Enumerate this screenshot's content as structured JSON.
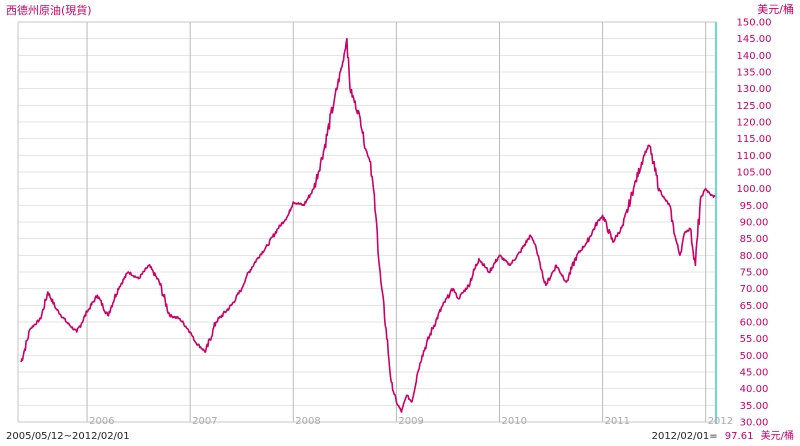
{
  "chart_data": {
    "type": "line",
    "title": "西德州原油(現貨)",
    "unit": "美元/桶",
    "date_range": "2005/05/12~2012/02/01",
    "latest": {
      "label": "2012/02/01=",
      "value": "97.61",
      "unit": "美元/桶"
    },
    "x_ticks": [
      "2006",
      "2007",
      "2008",
      "2009",
      "2010",
      "2011",
      "2012"
    ],
    "ylim": [
      30,
      150
    ],
    "y_ticks": [
      "30.00",
      "35.00",
      "40.00",
      "45.00",
      "50.00",
      "55.00",
      "60.00",
      "65.00",
      "70.00",
      "75.00",
      "80.00",
      "85.00",
      "90.00",
      "95.00",
      "100.00",
      "105.00",
      "110.00",
      "115.00",
      "120.00",
      "125.00",
      "130.00",
      "135.00",
      "140.00",
      "145.00",
      "150.00"
    ],
    "grid": true,
    "colors": {
      "line": "#cc0066",
      "title": "#cc0066",
      "axis_text": "#cc0066",
      "right_axis": "#66d9e8",
      "grid": "#bbbbbb",
      "x_tick": "#aaaaaa"
    },
    "series": [
      {
        "x": [
          2005.36,
          2005.45,
          2005.55,
          2005.62,
          2005.7,
          2005.8,
          2005.9,
          2006.0,
          2006.1,
          2006.2,
          2006.3,
          2006.4,
          2006.5,
          2006.6,
          2006.7,
          2006.8,
          2006.9,
          2007.0,
          2007.05,
          2007.15,
          2007.25,
          2007.4,
          2007.5,
          2007.55,
          2007.65,
          2007.75,
          2007.85,
          2007.95,
          2008.0,
          2008.1,
          2008.2,
          2008.3,
          2008.4,
          2008.48,
          2008.52,
          2008.55,
          2008.65,
          2008.7,
          2008.75,
          2008.8,
          2008.85,
          2008.9,
          2008.95,
          2009.0,
          2009.05,
          2009.1,
          2009.15,
          2009.2,
          2009.25,
          2009.35,
          2009.45,
          2009.55,
          2009.6,
          2009.7,
          2009.8,
          2009.9,
          2010.0,
          2010.1,
          2010.2,
          2010.3,
          2010.35,
          2010.4,
          2010.45,
          2010.55,
          2010.65,
          2010.75,
          2010.85,
          2010.95,
          2011.0,
          2011.1,
          2011.2,
          2011.3,
          2011.4,
          2011.45,
          2011.55,
          2011.6,
          2011.65,
          2011.7,
          2011.75,
          2011.8,
          2011.85,
          2011.9,
          2011.95,
          2012.0,
          2012.05,
          2012.09
        ],
        "values": [
          48,
          58,
          61,
          69,
          64,
          60,
          57,
          63,
          68,
          62,
          70,
          75,
          73,
          77,
          72,
          62,
          61,
          57,
          54,
          51,
          60,
          65,
          70,
          74,
          79,
          83,
          88,
          92,
          96,
          95,
          100,
          112,
          127,
          138,
          145,
          130,
          121,
          112,
          108,
          92,
          72,
          58,
          42,
          36,
          33,
          38,
          36,
          44,
          50,
          58,
          65,
          70,
          67,
          71,
          79,
          75,
          80,
          77,
          81,
          86,
          83,
          76,
          71,
          77,
          72,
          80,
          84,
          90,
          92,
          84,
          89,
          100,
          110,
          113,
          100,
          97,
          95,
          86,
          80,
          87,
          88,
          77,
          97,
          100,
          98,
          97.61
        ]
      }
    ]
  }
}
